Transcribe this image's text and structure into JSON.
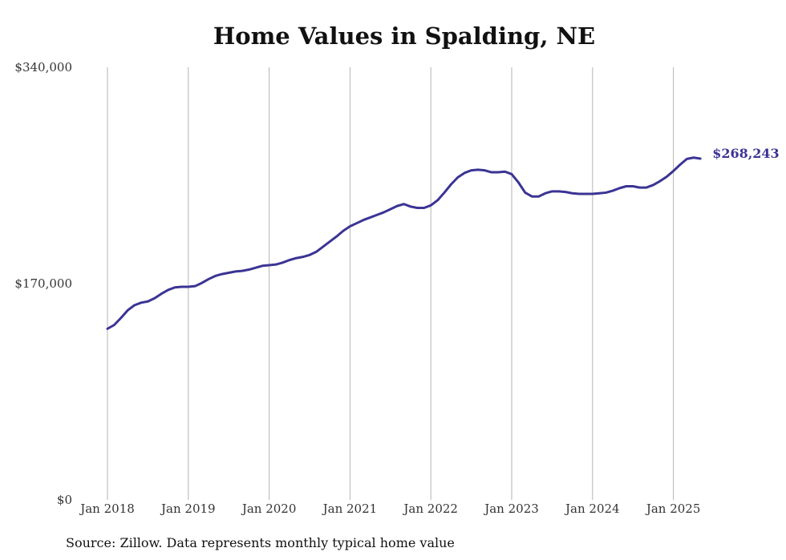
{
  "chart_data": {
    "type": "line",
    "title": "Home Values in Spalding, NE",
    "xlabel": "",
    "ylabel": "",
    "ylim": [
      0,
      340000
    ],
    "y_ticks": [
      "$0",
      "$170,000",
      "$340,000"
    ],
    "y_tick_values": [
      0,
      170000,
      340000
    ],
    "x_ticks": [
      "Jan 2018",
      "Jan 2019",
      "Jan 2020",
      "Jan 2021",
      "Jan 2022",
      "Jan 2023",
      "Jan 2024",
      "Jan 2025"
    ],
    "x_tick_dates": [
      "2018-01",
      "2019-01",
      "2020-01",
      "2021-01",
      "2022-01",
      "2023-01",
      "2024-01",
      "2025-01"
    ],
    "grid": "vertical",
    "series_color": "#3b3494",
    "end_label": "$268,243",
    "x": [
      "2018-01",
      "2018-02",
      "2018-03",
      "2018-04",
      "2018-05",
      "2018-06",
      "2018-07",
      "2018-08",
      "2018-09",
      "2018-10",
      "2018-11",
      "2018-12",
      "2019-01",
      "2019-02",
      "2019-03",
      "2019-04",
      "2019-05",
      "2019-06",
      "2019-07",
      "2019-08",
      "2019-09",
      "2019-10",
      "2019-11",
      "2019-12",
      "2020-01",
      "2020-02",
      "2020-03",
      "2020-04",
      "2020-05",
      "2020-06",
      "2020-07",
      "2020-08",
      "2020-09",
      "2020-10",
      "2020-11",
      "2020-12",
      "2021-01",
      "2021-02",
      "2021-03",
      "2021-04",
      "2021-05",
      "2021-06",
      "2021-07",
      "2021-08",
      "2021-09",
      "2021-10",
      "2021-11",
      "2021-12",
      "2022-01",
      "2022-02",
      "2022-03",
      "2022-04",
      "2022-05",
      "2022-06",
      "2022-07",
      "2022-08",
      "2022-09",
      "2022-10",
      "2022-11",
      "2022-12",
      "2023-01",
      "2023-02",
      "2023-03",
      "2023-04",
      "2023-05",
      "2023-06",
      "2023-07",
      "2023-08",
      "2023-09",
      "2023-10",
      "2023-11",
      "2023-12",
      "2024-01",
      "2024-02",
      "2024-03",
      "2024-04",
      "2024-05",
      "2024-06",
      "2024-07",
      "2024-08",
      "2024-09",
      "2024-10",
      "2024-11",
      "2024-12",
      "2025-01",
      "2025-02",
      "2025-03",
      "2025-04",
      "2025-05"
    ],
    "values": [
      134500,
      137500,
      143000,
      149000,
      153000,
      155000,
      156000,
      158500,
      162000,
      165000,
      167000,
      167500,
      167500,
      168000,
      170500,
      173500,
      176000,
      177500,
      178500,
      179500,
      180000,
      181000,
      182500,
      184000,
      184500,
      185000,
      186500,
      188500,
      190000,
      191000,
      192500,
      195000,
      199000,
      203000,
      207000,
      211500,
      215000,
      217500,
      220000,
      222000,
      224000,
      226000,
      228500,
      231000,
      232500,
      230500,
      229500,
      229500,
      231500,
      235500,
      241500,
      248000,
      253500,
      257000,
      259000,
      259500,
      259000,
      257500,
      257500,
      258000,
      256000,
      249500,
      241500,
      238500,
      238500,
      241000,
      242500,
      242500,
      242000,
      241000,
      240500,
      240500,
      240500,
      241000,
      241500,
      243000,
      245000,
      246500,
      246500,
      245500,
      245500,
      247500,
      250500,
      254000,
      258500,
      263500,
      268000,
      269000,
      268243
    ]
  },
  "footer": {
    "source": "Source: Zillow. Data represents monthly typical home value"
  }
}
